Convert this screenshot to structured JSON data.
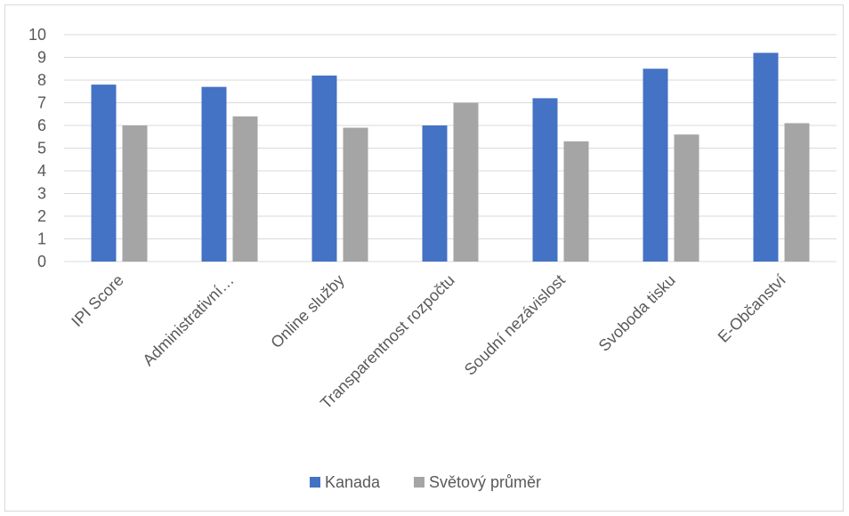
{
  "chart_data": {
    "type": "bar",
    "title": "",
    "xlabel": "",
    "ylabel": "",
    "ylim": [
      0,
      10
    ],
    "yticks": [
      0,
      1,
      2,
      3,
      4,
      5,
      6,
      7,
      8,
      9,
      10
    ],
    "grid": true,
    "legend_position": "bottom",
    "categories": [
      "IPI Score",
      "Administrativní…",
      "Online služby",
      "Transparentnost rozpočtu",
      "Soudní nezávislost",
      "Svoboda tisku",
      "E-Občanství"
    ],
    "series": [
      {
        "name": "Kanada",
        "color": "#4472c4",
        "values": [
          7.8,
          7.7,
          8.2,
          6.0,
          7.2,
          8.5,
          9.2
        ]
      },
      {
        "name": "Světový průměr",
        "color": "#a5a5a5",
        "values": [
          6.0,
          6.4,
          5.9,
          7.0,
          5.3,
          5.6,
          6.1
        ]
      }
    ]
  }
}
